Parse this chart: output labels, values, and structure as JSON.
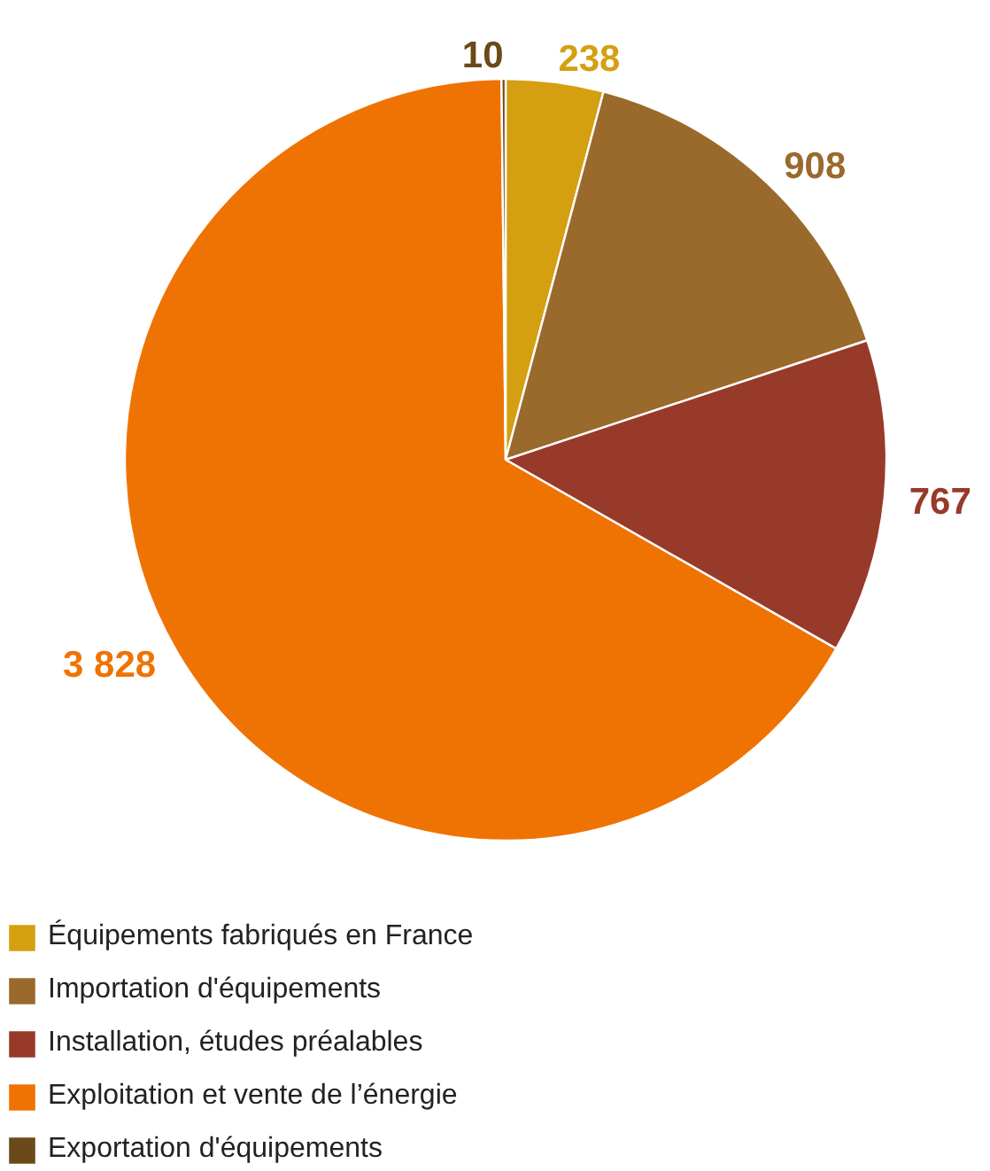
{
  "chart_data": {
    "type": "pie",
    "categories": [
      "Équipements fabriqués en France",
      "Importation d'équipements",
      "Installation, études préalables",
      "Exploitation et vente de l’énergie",
      "Exportation d'équipements"
    ],
    "values": [
      238,
      908,
      767,
      3828,
      10
    ],
    "value_labels": [
      "238",
      "908",
      "767",
      "3 828",
      "10"
    ],
    "colors": [
      "#d4a012",
      "#9a6a2c",
      "#983a2a",
      "#ef7303",
      "#6b4a1a"
    ],
    "legend": "bottom left"
  }
}
